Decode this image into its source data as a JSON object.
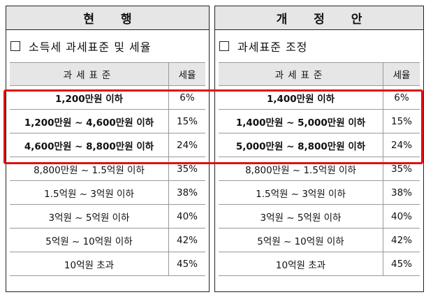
{
  "left": {
    "title": "현 행",
    "section_label": "소득세 과세표준 및 세율",
    "headers": {
      "bracket": "과세표준",
      "rate": "세율"
    },
    "rows": [
      {
        "bracket": "1,200만원 이하",
        "rate": "6%",
        "bold": true
      },
      {
        "bracket": "1,200만원 ~ 4,600만원 이하",
        "rate": "15%",
        "bold": true
      },
      {
        "bracket": "4,600만원 ~ 8,800만원 이하",
        "rate": "24%",
        "bold": true
      },
      {
        "bracket": "8,800만원 ~ 1.5억원 이하",
        "rate": "35%",
        "bold": false
      },
      {
        "bracket": "1.5억원 ~ 3억원 이하",
        "rate": "38%",
        "bold": false
      },
      {
        "bracket": "3억원 ~ 5억원 이하",
        "rate": "40%",
        "bold": false
      },
      {
        "bracket": "5억원 ~ 10억원 이하",
        "rate": "42%",
        "bold": false
      },
      {
        "bracket": "10억원 초과",
        "rate": "45%",
        "bold": false
      }
    ]
  },
  "right": {
    "title": "개 정 안",
    "section_label": "과세표준 조정",
    "headers": {
      "bracket": "과세표준",
      "rate": "세율"
    },
    "rows": [
      {
        "bracket": "1,400만원 이하",
        "rate": "6%",
        "bold": true
      },
      {
        "bracket": "1,400만원 ~ 5,000만원 이하",
        "rate": "15%",
        "bold": true
      },
      {
        "bracket": "5,000만원 ~ 8,800만원 이하",
        "rate": "24%",
        "bold": true
      },
      {
        "bracket": "8,800만원 ~ 1.5억원 이하",
        "rate": "35%",
        "bold": false
      },
      {
        "bracket": "1.5억원 ~ 3억원 이하",
        "rate": "38%",
        "bold": false
      },
      {
        "bracket": "3억원 ~ 5억원 이하",
        "rate": "40%",
        "bold": false
      },
      {
        "bracket": "5억원 ~ 10억원 이하",
        "rate": "42%",
        "bold": false
      },
      {
        "bracket": "10억원 초과",
        "rate": "45%",
        "bold": false
      }
    ]
  },
  "colors": {
    "highlight": "#e01010",
    "header_bg": "#e6e6e6"
  }
}
